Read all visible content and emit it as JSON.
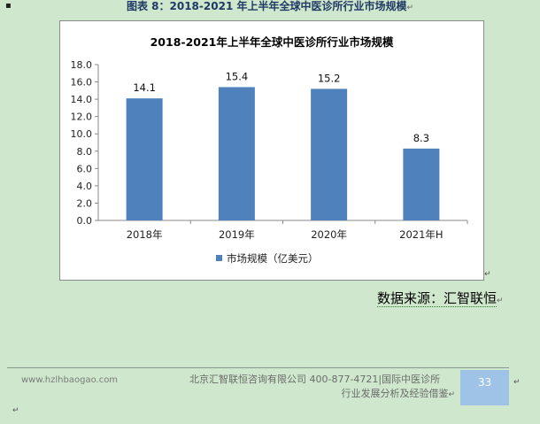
{
  "bullet": "▪",
  "figure_caption": "图表 8：2018-2021 年上半年全球中医诊所行业市场规模",
  "paragraph_mark": "↵",
  "source_text": "数据来源：汇智联恒",
  "footer": {
    "website": "www.hzlhbaogao.com",
    "company_line1": "北京汇智联恒咨询有限公司  400-877-4721|国际中医诊所",
    "company_line2": "行业发展分析及经验借鉴",
    "page_number": "33"
  },
  "colors": {
    "bar": "#4f81bd",
    "page_box": "#9ec3e6",
    "background": "#cfe8cd"
  },
  "chart_data": {
    "type": "bar",
    "title": "2018-2021年上半年全球中医诊所行业市场规模",
    "categories": [
      "2018年",
      "2019年",
      "2020年",
      "2021年H"
    ],
    "series": [
      {
        "name": "市场规模（亿美元）",
        "values": [
          14.1,
          15.4,
          15.2,
          8.3
        ]
      }
    ],
    "data_labels": [
      "14.1",
      "15.4",
      "15.2",
      "8.3"
    ],
    "y_ticks": [
      "0.0",
      "2.0",
      "4.0",
      "6.0",
      "8.0",
      "10.0",
      "12.0",
      "14.0",
      "16.0",
      "18.0"
    ],
    "ylim": [
      0,
      18
    ],
    "grid": false,
    "legend_position": "bottom"
  }
}
